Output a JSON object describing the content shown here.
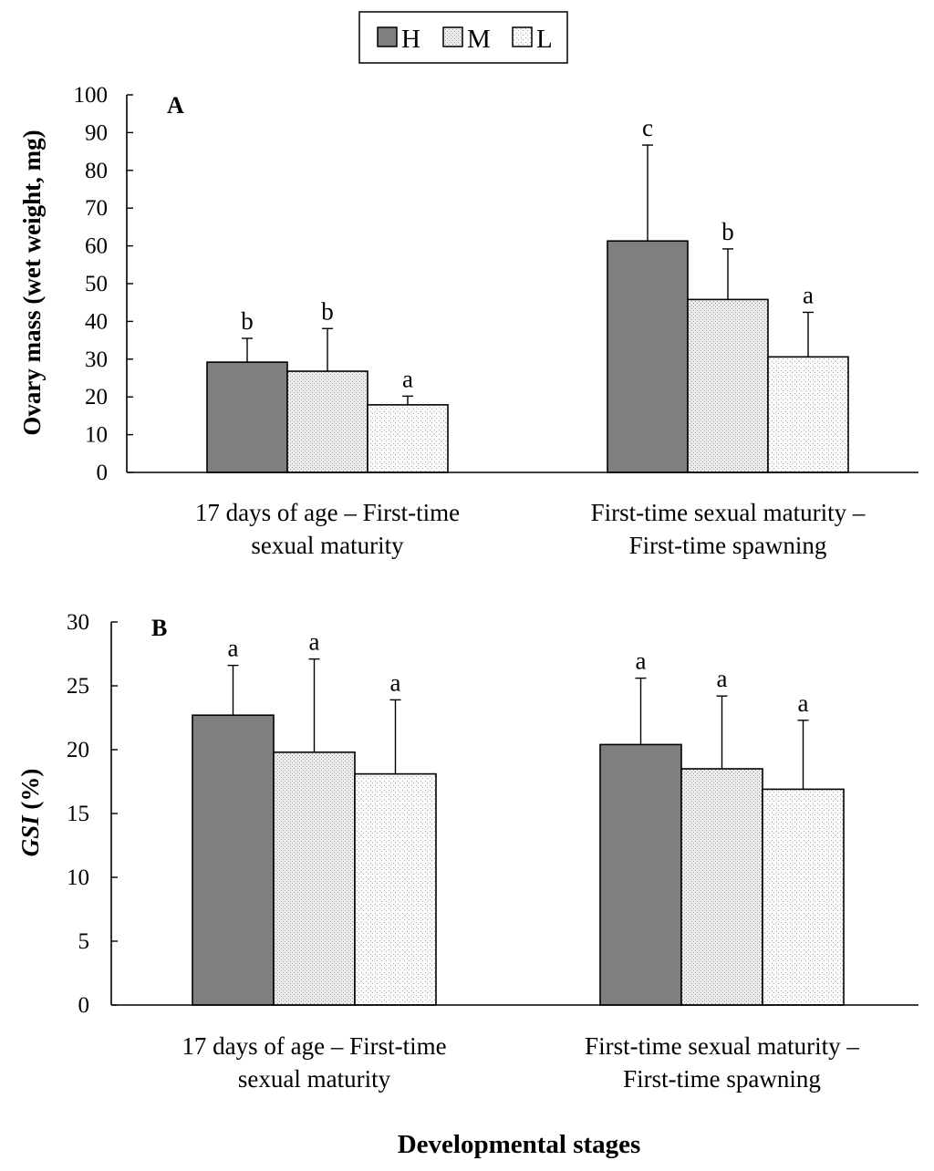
{
  "legend": [
    {
      "key": "H",
      "label": "H"
    },
    {
      "key": "M",
      "label": "M"
    },
    {
      "key": "L",
      "label": "L"
    }
  ],
  "colors": {
    "H": "#7f7f7f",
    "M": "#e8e8e8",
    "L": "#f7f7f7",
    "axis": "#000000"
  },
  "xlabel": "Developmental stages",
  "chart_data": [
    {
      "type": "bar",
      "panel": "A",
      "ylabel": "Ovary mass (wet weight, mg)",
      "ylim": [
        0,
        100
      ],
      "yticks": [
        0,
        10,
        20,
        30,
        40,
        50,
        60,
        70,
        80,
        90,
        100
      ],
      "categories": [
        [
          "17 days of age – First-time",
          "sexual maturity"
        ],
        [
          "First-time sexual maturity –",
          "First-time spawning"
        ]
      ],
      "series": [
        {
          "name": "H",
          "values": [
            29.2,
            61.3
          ],
          "errors": [
            6.3,
            25.4
          ],
          "letters": [
            "b",
            "c"
          ]
        },
        {
          "name": "M",
          "values": [
            26.8,
            45.8
          ],
          "errors": [
            11.3,
            13.4
          ],
          "letters": [
            "b",
            "b"
          ]
        },
        {
          "name": "L",
          "values": [
            17.9,
            30.6
          ],
          "errors": [
            2.3,
            11.8
          ],
          "letters": [
            "a",
            "a"
          ]
        }
      ]
    },
    {
      "type": "bar",
      "panel": "B",
      "ylabel": "GSI (%)",
      "ylabel_italic": "GSI",
      "ylabel_rest": " (%)",
      "ylim": [
        0,
        30
      ],
      "yticks": [
        0,
        5,
        10,
        15,
        20,
        25,
        30
      ],
      "categories": [
        [
          "17 days of age – First-time",
          "sexual maturity"
        ],
        [
          "First-time sexual maturity –",
          "First-time spawning"
        ]
      ],
      "series": [
        {
          "name": "H",
          "values": [
            22.7,
            20.4
          ],
          "errors": [
            3.9,
            5.2
          ],
          "letters": [
            "a",
            "a"
          ]
        },
        {
          "name": "M",
          "values": [
            19.8,
            18.5
          ],
          "errors": [
            7.3,
            5.7
          ],
          "letters": [
            "a",
            "a"
          ]
        },
        {
          "name": "L",
          "values": [
            18.1,
            16.9
          ],
          "errors": [
            5.8,
            5.4
          ],
          "letters": [
            "a",
            "a"
          ]
        }
      ]
    }
  ]
}
